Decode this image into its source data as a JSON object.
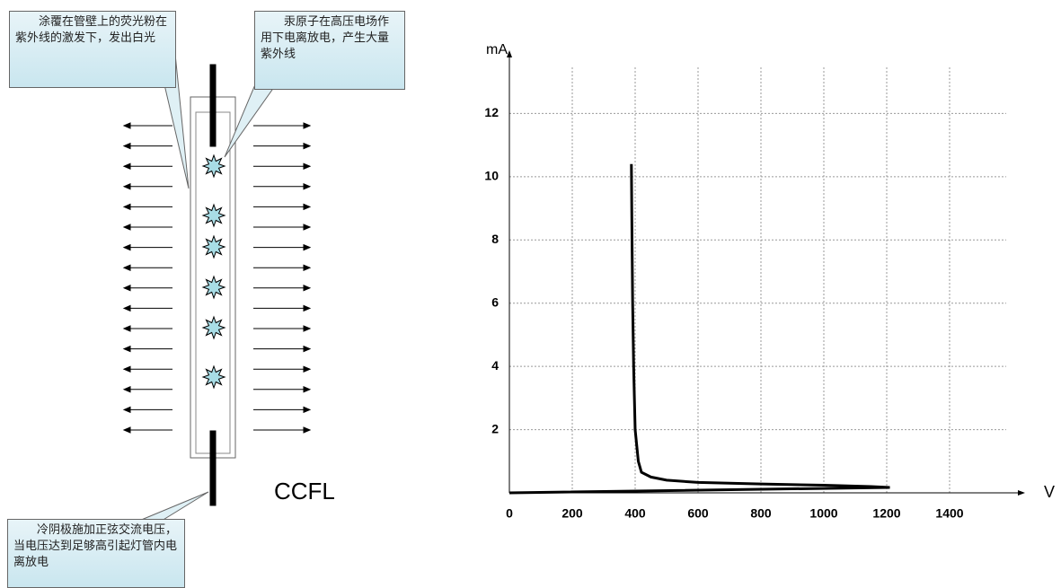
{
  "diagram": {
    "callouts": [
      "涂覆在管壁上的荧光粉在紫外线的激发下，发出白光",
      "汞原子在高压电场作用下电离放电，产生大量紫外线",
      "冷阴极施加正弦交流电压，当电压达到足够高引起灯管内电离放电"
    ],
    "label": "CCFL"
  },
  "chart_data": {
    "type": "line",
    "x_label": "V",
    "y_label": "mA",
    "x": [
      0,
      1210,
      1150,
      1000,
      800,
      600,
      500,
      450,
      420,
      410,
      400,
      395,
      392,
      390,
      388
    ],
    "values": [
      0,
      0.17,
      0.2,
      0.24,
      0.28,
      0.33,
      0.4,
      0.5,
      0.65,
      1.0,
      2,
      4,
      6,
      8,
      10.4
    ],
    "color": "#000000",
    "xlim": [
      0,
      1600
    ],
    "ylim": [
      0,
      14
    ],
    "xticks": [
      0,
      200,
      400,
      600,
      800,
      1000,
      1200,
      1400
    ],
    "yticks": [
      2,
      4,
      6,
      8,
      10,
      12
    ],
    "grid": true
  }
}
